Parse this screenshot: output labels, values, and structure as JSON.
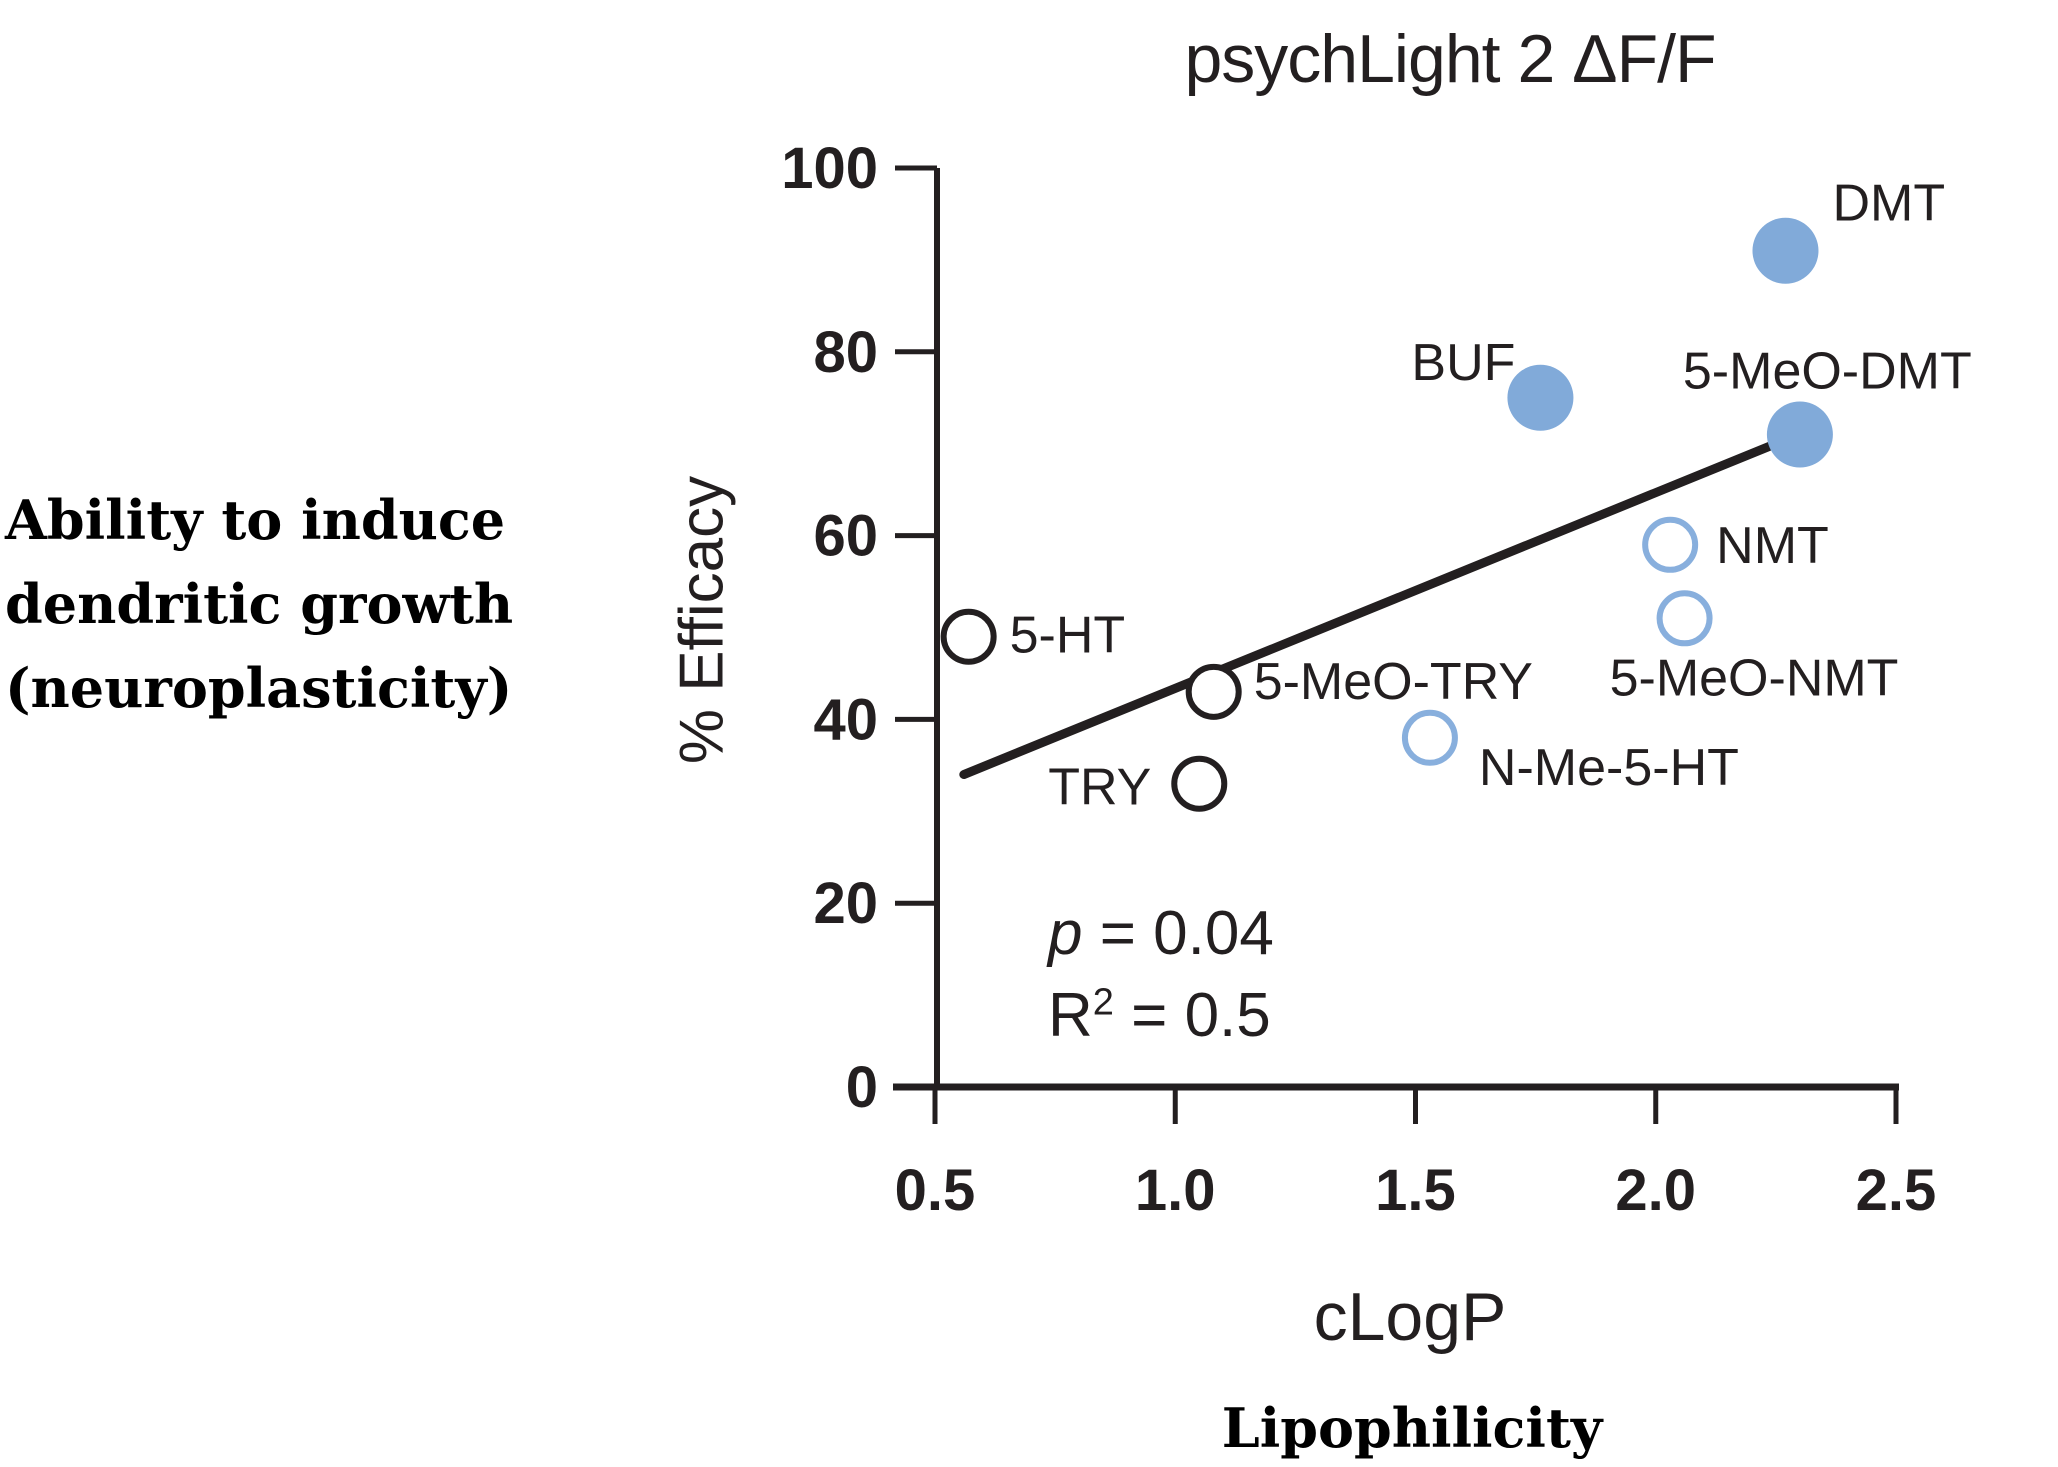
{
  "annotation": {
    "lines": [
      "Ability to induce",
      "dendritic growth",
      "(neuroplasticity)"
    ]
  },
  "chart": {
    "caption": "Lipophilicity",
    "stats_display": {
      "p_symbol": "p",
      "p_rest": " = 0.04",
      "r_symbol": "R",
      "r_exponent": "2",
      "r_rest": " = 0.5"
    }
  },
  "colors": {
    "ink": "#231f20",
    "blue_fill": "#81aad9",
    "blue_stroke": "#88afdd",
    "open_fill": "#ffffff"
  },
  "chart_data": {
    "type": "scatter",
    "title": "psychLight 2 ΔF/F",
    "xlabel": "cLogP",
    "ylabel": "% Efficacy",
    "xlim": [
      0.5,
      2.5
    ],
    "ylim": [
      0,
      100
    ],
    "grid": false,
    "x_ticks": {
      "values": [
        0.5,
        1.0,
        1.5,
        2.0,
        2.5
      ],
      "labels": [
        "0.5",
        "1.0",
        "1.5",
        "2.0",
        "2.5"
      ]
    },
    "y_ticks": {
      "values": [
        0,
        20,
        40,
        60,
        80,
        100
      ],
      "labels": [
        "0",
        "20",
        "40",
        "60",
        "80",
        "100"
      ]
    },
    "series": [
      {
        "name": "filled-blue-circles",
        "marker": "filled",
        "points": [
          {
            "label": "DMT",
            "x": 2.27,
            "y": 91,
            "anchor": "start",
            "dx": 47,
            "dy": -30
          },
          {
            "label": "BUF",
            "x": 1.76,
            "y": 75,
            "anchor": "end",
            "dx": -25,
            "dy": -18
          },
          {
            "label": "5-MeO-DMT",
            "x": 2.3,
            "y": 71,
            "anchor": "start",
            "dx": -117,
            "dy": -46
          }
        ]
      },
      {
        "name": "open-blue-circles",
        "marker": "open-blue",
        "points": [
          {
            "label": "NMT",
            "x": 2.03,
            "y": 59,
            "anchor": "start",
            "dx": 46,
            "dy": 18
          },
          {
            "label": "5-MeO-NMT",
            "x": 2.06,
            "y": 51,
            "anchor": "start",
            "dx": -75,
            "dy": 77
          },
          {
            "label": "N-Me-5-HT",
            "x": 1.53,
            "y": 38,
            "anchor": "start",
            "dx": 49,
            "dy": 47
          }
        ]
      },
      {
        "name": "open-black-circles",
        "marker": "open-black",
        "points": [
          {
            "label": "5-HT",
            "x": 0.57,
            "y": 49,
            "anchor": "start",
            "dx": 41,
            "dy": 16
          },
          {
            "label": "5-MeO-TRY",
            "x": 1.08,
            "y": 43,
            "anchor": "start",
            "dx": 40,
            "dy": 7
          },
          {
            "label": "TRY",
            "x": 1.05,
            "y": 33,
            "anchor": "end",
            "dx": -48,
            "dy": 21
          }
        ]
      }
    ],
    "trendline": {
      "x1": 0.56,
      "y1": 34,
      "x2": 2.25,
      "y2": 70
    },
    "stats": {
      "p": "0.04",
      "r_squared": "0.5"
    }
  }
}
